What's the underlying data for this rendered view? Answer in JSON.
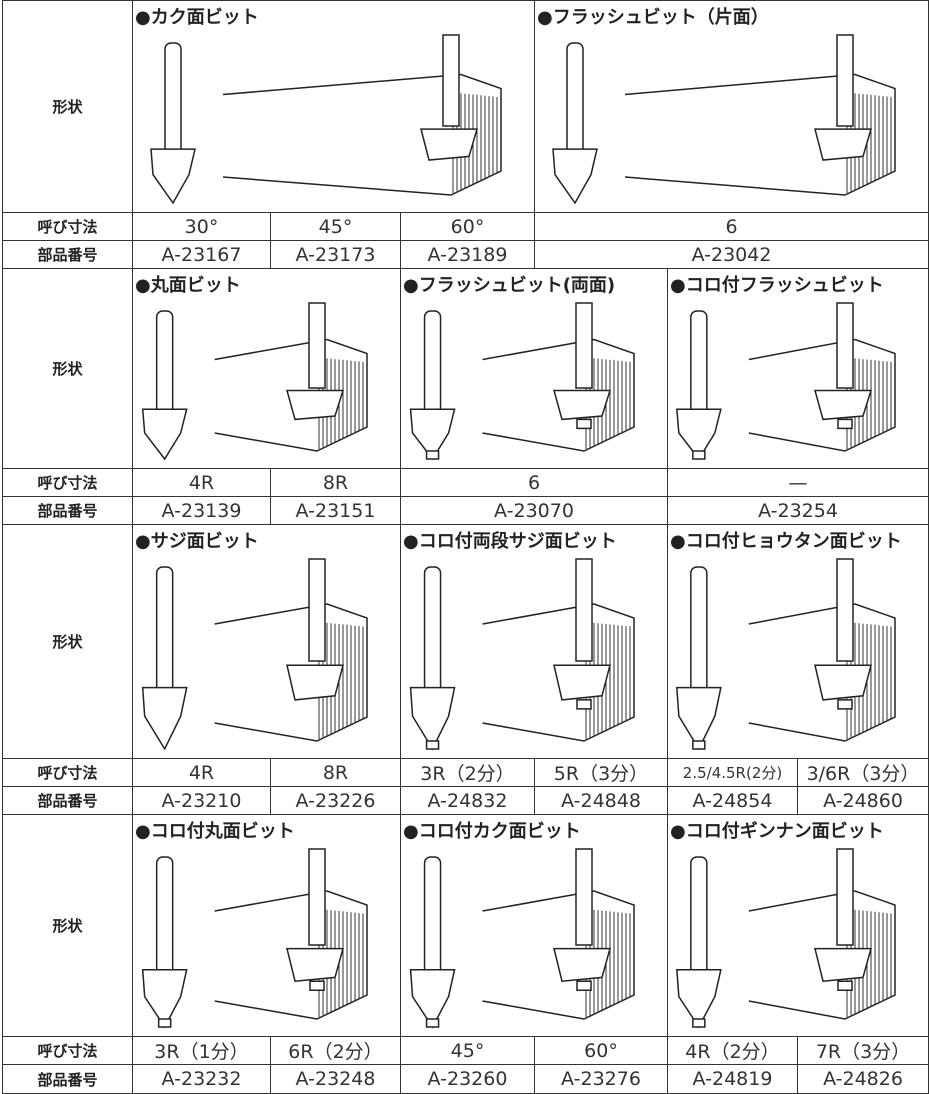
{
  "row_labels": {
    "shape": "形状",
    "size": "呼び寸法",
    "part": "部品番号"
  },
  "sections": [
    {
      "groups": [
        {
          "title": "●カク面ビット",
          "sizes": [
            "30°",
            "45°",
            "60°"
          ],
          "part_numbers": [
            "A-23167",
            "A-23173",
            "A-23189"
          ]
        },
        {
          "title": "●フラッシュビット（片面）",
          "sizes": [
            "6"
          ],
          "part_numbers": [
            "A-23042"
          ]
        }
      ]
    },
    {
      "groups": [
        {
          "title": "●丸面ビット",
          "sizes": [
            "4R",
            "8R"
          ],
          "part_numbers": [
            "A-23139",
            "A-23151"
          ]
        },
        {
          "title": "●フラッシュビット(両面)",
          "sizes": [
            "6"
          ],
          "part_numbers": [
            "A-23070"
          ]
        },
        {
          "title": "●コロ付フラッシュビット",
          "sizes": [
            "—"
          ],
          "part_numbers": [
            "A-23254"
          ]
        }
      ]
    },
    {
      "groups": [
        {
          "title": "●サジ面ビット",
          "sizes": [
            "4R",
            "8R"
          ],
          "part_numbers": [
            "A-23210",
            "A-23226"
          ]
        },
        {
          "title": "●コロ付両段サジ面ビット",
          "sizes": [
            "3R（2分）",
            "5R（3分）"
          ],
          "part_numbers": [
            "A-24832",
            "A-24848"
          ]
        },
        {
          "title": "●コロ付ヒョウタン面ビット",
          "sizes": [
            "2.5/4.5R(2分)",
            "3/6R（3分）"
          ],
          "part_numbers": [
            "A-24854",
            "A-24860"
          ]
        }
      ]
    },
    {
      "groups": [
        {
          "title": "●コロ付丸面ビット",
          "sizes": [
            "3R（1分）",
            "6R（2分）"
          ],
          "part_numbers": [
            "A-23232",
            "A-23248"
          ]
        },
        {
          "title": "●コロ付カク面ビット",
          "sizes": [
            "45°",
            "60°"
          ],
          "part_numbers": [
            "A-23260",
            "A-23276"
          ]
        },
        {
          "title": "●コロ付ギンナン面ビット",
          "sizes": [
            "4R（2分）",
            "7R（3分）"
          ],
          "part_numbers": [
            "A-24819",
            "A-24826"
          ]
        }
      ]
    }
  ]
}
